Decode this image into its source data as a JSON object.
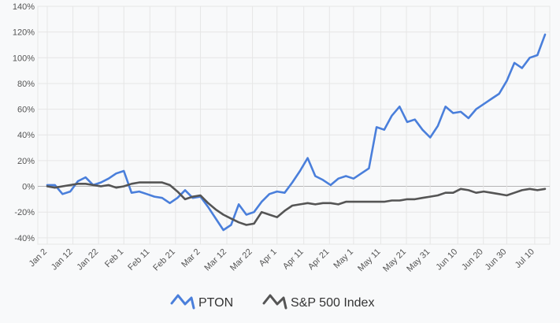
{
  "chart_data": {
    "type": "line",
    "title": "",
    "xlabel": "",
    "ylabel": "",
    "x": [
      "Jan 2",
      "Jan 5",
      "Jan 8",
      "Jan 11",
      "Jan 14",
      "Jan 17",
      "Jan 20",
      "Jan 23",
      "Jan 26",
      "Jan 29",
      "Feb 1",
      "Feb 4",
      "Feb 7",
      "Feb 10",
      "Feb 13",
      "Feb 16",
      "Feb 19",
      "Feb 22",
      "Feb 25",
      "Feb 28",
      "Mar 2",
      "Mar 5",
      "Mar 8",
      "Mar 11",
      "Mar 14",
      "Mar 17",
      "Mar 20",
      "Mar 23",
      "Mar 26",
      "Mar 29",
      "Apr 1",
      "Apr 4",
      "Apr 7",
      "Apr 10",
      "Apr 13",
      "Apr 16",
      "Apr 19",
      "Apr 22",
      "Apr 25",
      "Apr 28",
      "May 1",
      "May 4",
      "May 7",
      "May 10",
      "May 13",
      "May 16",
      "May 19",
      "May 22",
      "May 25",
      "May 28",
      "May 31",
      "Jun 3",
      "Jun 6",
      "Jun 9",
      "Jun 12",
      "Jun 15",
      "Jun 18",
      "Jun 21",
      "Jun 24",
      "Jun 27",
      "Jun 30",
      "Jul 3",
      "Jul 6",
      "Jul 9",
      "Jul 12",
      "Jul 15"
    ],
    "xtick_labels": [
      "Jan 2",
      "Jan 12",
      "Jan 22",
      "Feb 1",
      "Feb 11",
      "Feb 21",
      "Mar 2",
      "Mar 12",
      "Mar 22",
      "Apr 1",
      "Apr 11",
      "Apr 21",
      "May 1",
      "May 11",
      "May 21",
      "May 31",
      "Jun 10",
      "Jun 20",
      "Jun 30",
      "Jul 10"
    ],
    "ytick_labels": [
      "140%",
      "120%",
      "100%",
      "80%",
      "60%",
      "40%",
      "20%",
      "0%",
      "-20%",
      "-40%"
    ],
    "ylim": [
      -45,
      140
    ],
    "grid": true,
    "legend_position": "bottom",
    "series": [
      {
        "name": "PTON",
        "color": "#4a7fdb",
        "values": [
          1,
          1,
          -6,
          -4,
          4,
          7,
          1,
          3,
          6,
          10,
          12,
          -5,
          -4,
          -6,
          -8,
          -9,
          -13,
          -9,
          -3,
          -9,
          -8,
          -16,
          -25,
          -34,
          -30,
          -14,
          -22,
          -20,
          -12,
          -6,
          -4,
          -5,
          3,
          12,
          22,
          8,
          5,
          1,
          6,
          8,
          6,
          10,
          14,
          46,
          44,
          55,
          62,
          50,
          52,
          44,
          38,
          47,
          62,
          57,
          58,
          53,
          60,
          64,
          68,
          72,
          82,
          96,
          92,
          100,
          102,
          118
        ]
      },
      {
        "name": "S&P 500 Index",
        "color": "#555555",
        "values": [
          0,
          -1,
          0,
          1,
          2,
          2,
          1,
          0,
          1,
          -1,
          0,
          2,
          3,
          3,
          3,
          3,
          1,
          -4,
          -10,
          -8,
          -7,
          -13,
          -18,
          -22,
          -25,
          -28,
          -30,
          -29,
          -20,
          -22,
          -24,
          -19,
          -15,
          -14,
          -13,
          -14,
          -13,
          -13,
          -14,
          -12,
          -12,
          -12,
          -12,
          -12,
          -12,
          -11,
          -11,
          -10,
          -10,
          -9,
          -8,
          -7,
          -5,
          -5,
          -2,
          -3,
          -5,
          -4,
          -5,
          -6,
          -7,
          -5,
          -3,
          -2,
          -3,
          -2
        ]
      }
    ]
  }
}
